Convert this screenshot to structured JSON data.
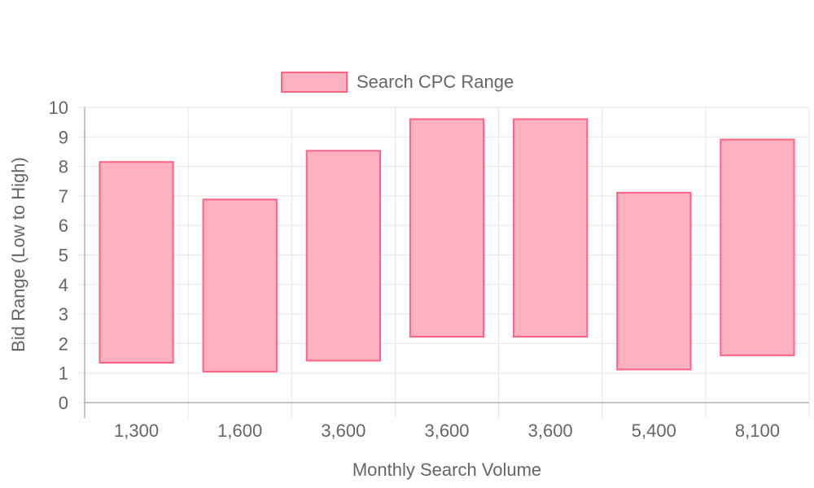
{
  "chart_data": {
    "type": "bar",
    "floating": true,
    "categories": [
      "1,300",
      "1,600",
      "3,600",
      "3,600",
      "3,600",
      "5,400",
      "8,100"
    ],
    "series": [
      {
        "name": "Search CPC Range",
        "ranges": [
          [
            1.35,
            8.15
          ],
          [
            1.05,
            6.88
          ],
          [
            1.42,
            8.53
          ],
          [
            2.23,
            9.6
          ],
          [
            2.23,
            9.6
          ],
          [
            1.12,
            7.11
          ],
          [
            1.6,
            8.91
          ]
        ]
      }
    ],
    "xlabel": "Monthly Search Volume",
    "ylabel": "Bid Range (Low to High)",
    "ylim": [
      0,
      10
    ],
    "yticks": [
      "0",
      "1",
      "2",
      "3",
      "4",
      "5",
      "6",
      "7",
      "8",
      "9",
      "10"
    ],
    "grid": true,
    "legend": "top-center",
    "colors": {
      "bar_fill": "#ffb1c1",
      "bar_stroke": "#ff6384",
      "grid": "#e5e5e5",
      "axis": "#b0b0b0",
      "text": "#666666"
    }
  }
}
